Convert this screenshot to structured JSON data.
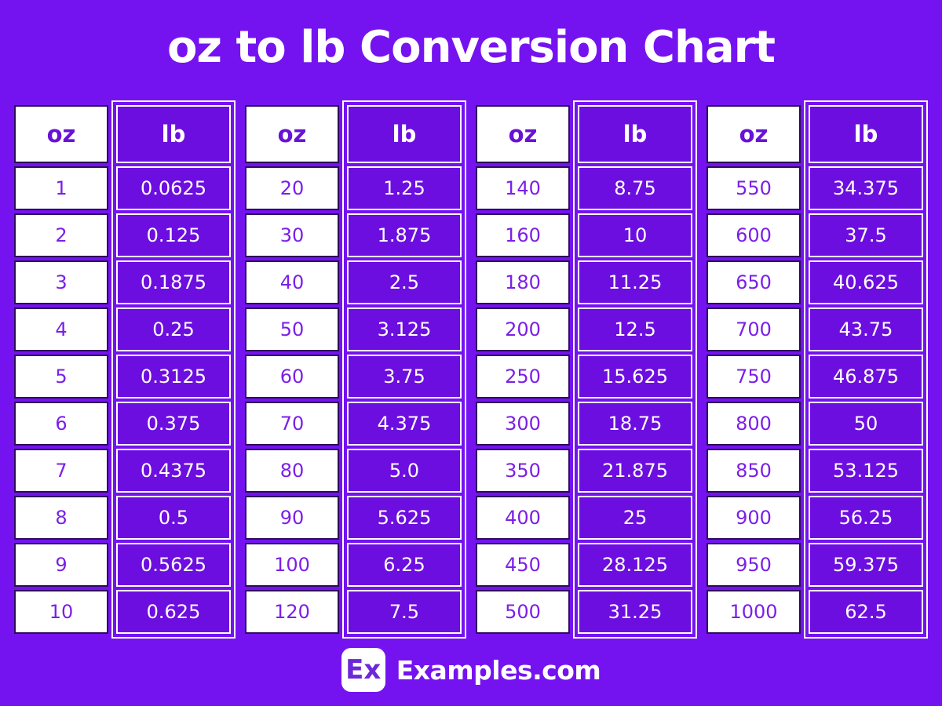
{
  "title": "oz to lb Conversion Chart",
  "colors": {
    "background": "#7513F0",
    "cell_purple": "#6D0EE0",
    "dark_border": "#2D0B5C",
    "purple_text": "#7B1FE8",
    "header_text": "#6812D6",
    "white": "#ffffff",
    "logo_text": "#6D28D9"
  },
  "tables": [
    {
      "columns": [
        "oz",
        "lb"
      ],
      "rows": [
        [
          "1",
          "0.0625"
        ],
        [
          "2",
          "0.125"
        ],
        [
          "3",
          "0.1875"
        ],
        [
          "4",
          "0.25"
        ],
        [
          "5",
          "0.3125"
        ],
        [
          "6",
          "0.375"
        ],
        [
          "7",
          "0.4375"
        ],
        [
          "8",
          "0.5"
        ],
        [
          "9",
          "0.5625"
        ],
        [
          "10",
          "0.625"
        ]
      ]
    },
    {
      "columns": [
        "oz",
        "lb"
      ],
      "rows": [
        [
          "20",
          "1.25"
        ],
        [
          "30",
          "1.875"
        ],
        [
          "40",
          "2.5"
        ],
        [
          "50",
          "3.125"
        ],
        [
          "60",
          "3.75"
        ],
        [
          "70",
          "4.375"
        ],
        [
          "80",
          "5.0"
        ],
        [
          "90",
          "5.625"
        ],
        [
          "100",
          "6.25"
        ],
        [
          "120",
          "7.5"
        ]
      ]
    },
    {
      "columns": [
        "oz",
        "lb"
      ],
      "rows": [
        [
          "140",
          "8.75"
        ],
        [
          "160",
          "10"
        ],
        [
          "180",
          "11.25"
        ],
        [
          "200",
          "12.5"
        ],
        [
          "250",
          "15.625"
        ],
        [
          "300",
          "18.75"
        ],
        [
          "350",
          "21.875"
        ],
        [
          "400",
          "25"
        ],
        [
          "450",
          "28.125"
        ],
        [
          "500",
          "31.25"
        ]
      ]
    },
    {
      "columns": [
        "oz",
        "lb"
      ],
      "rows": [
        [
          "550",
          "34.375"
        ],
        [
          "600",
          "37.5"
        ],
        [
          "650",
          "40.625"
        ],
        [
          "700",
          "43.75"
        ],
        [
          "750",
          "46.875"
        ],
        [
          "800",
          "50"
        ],
        [
          "850",
          "53.125"
        ],
        [
          "900",
          "56.25"
        ],
        [
          "950",
          "59.375"
        ],
        [
          "1000",
          "62.5"
        ]
      ]
    }
  ],
  "footer": {
    "logo_text": "Ex",
    "site_name": "Examples.com"
  }
}
